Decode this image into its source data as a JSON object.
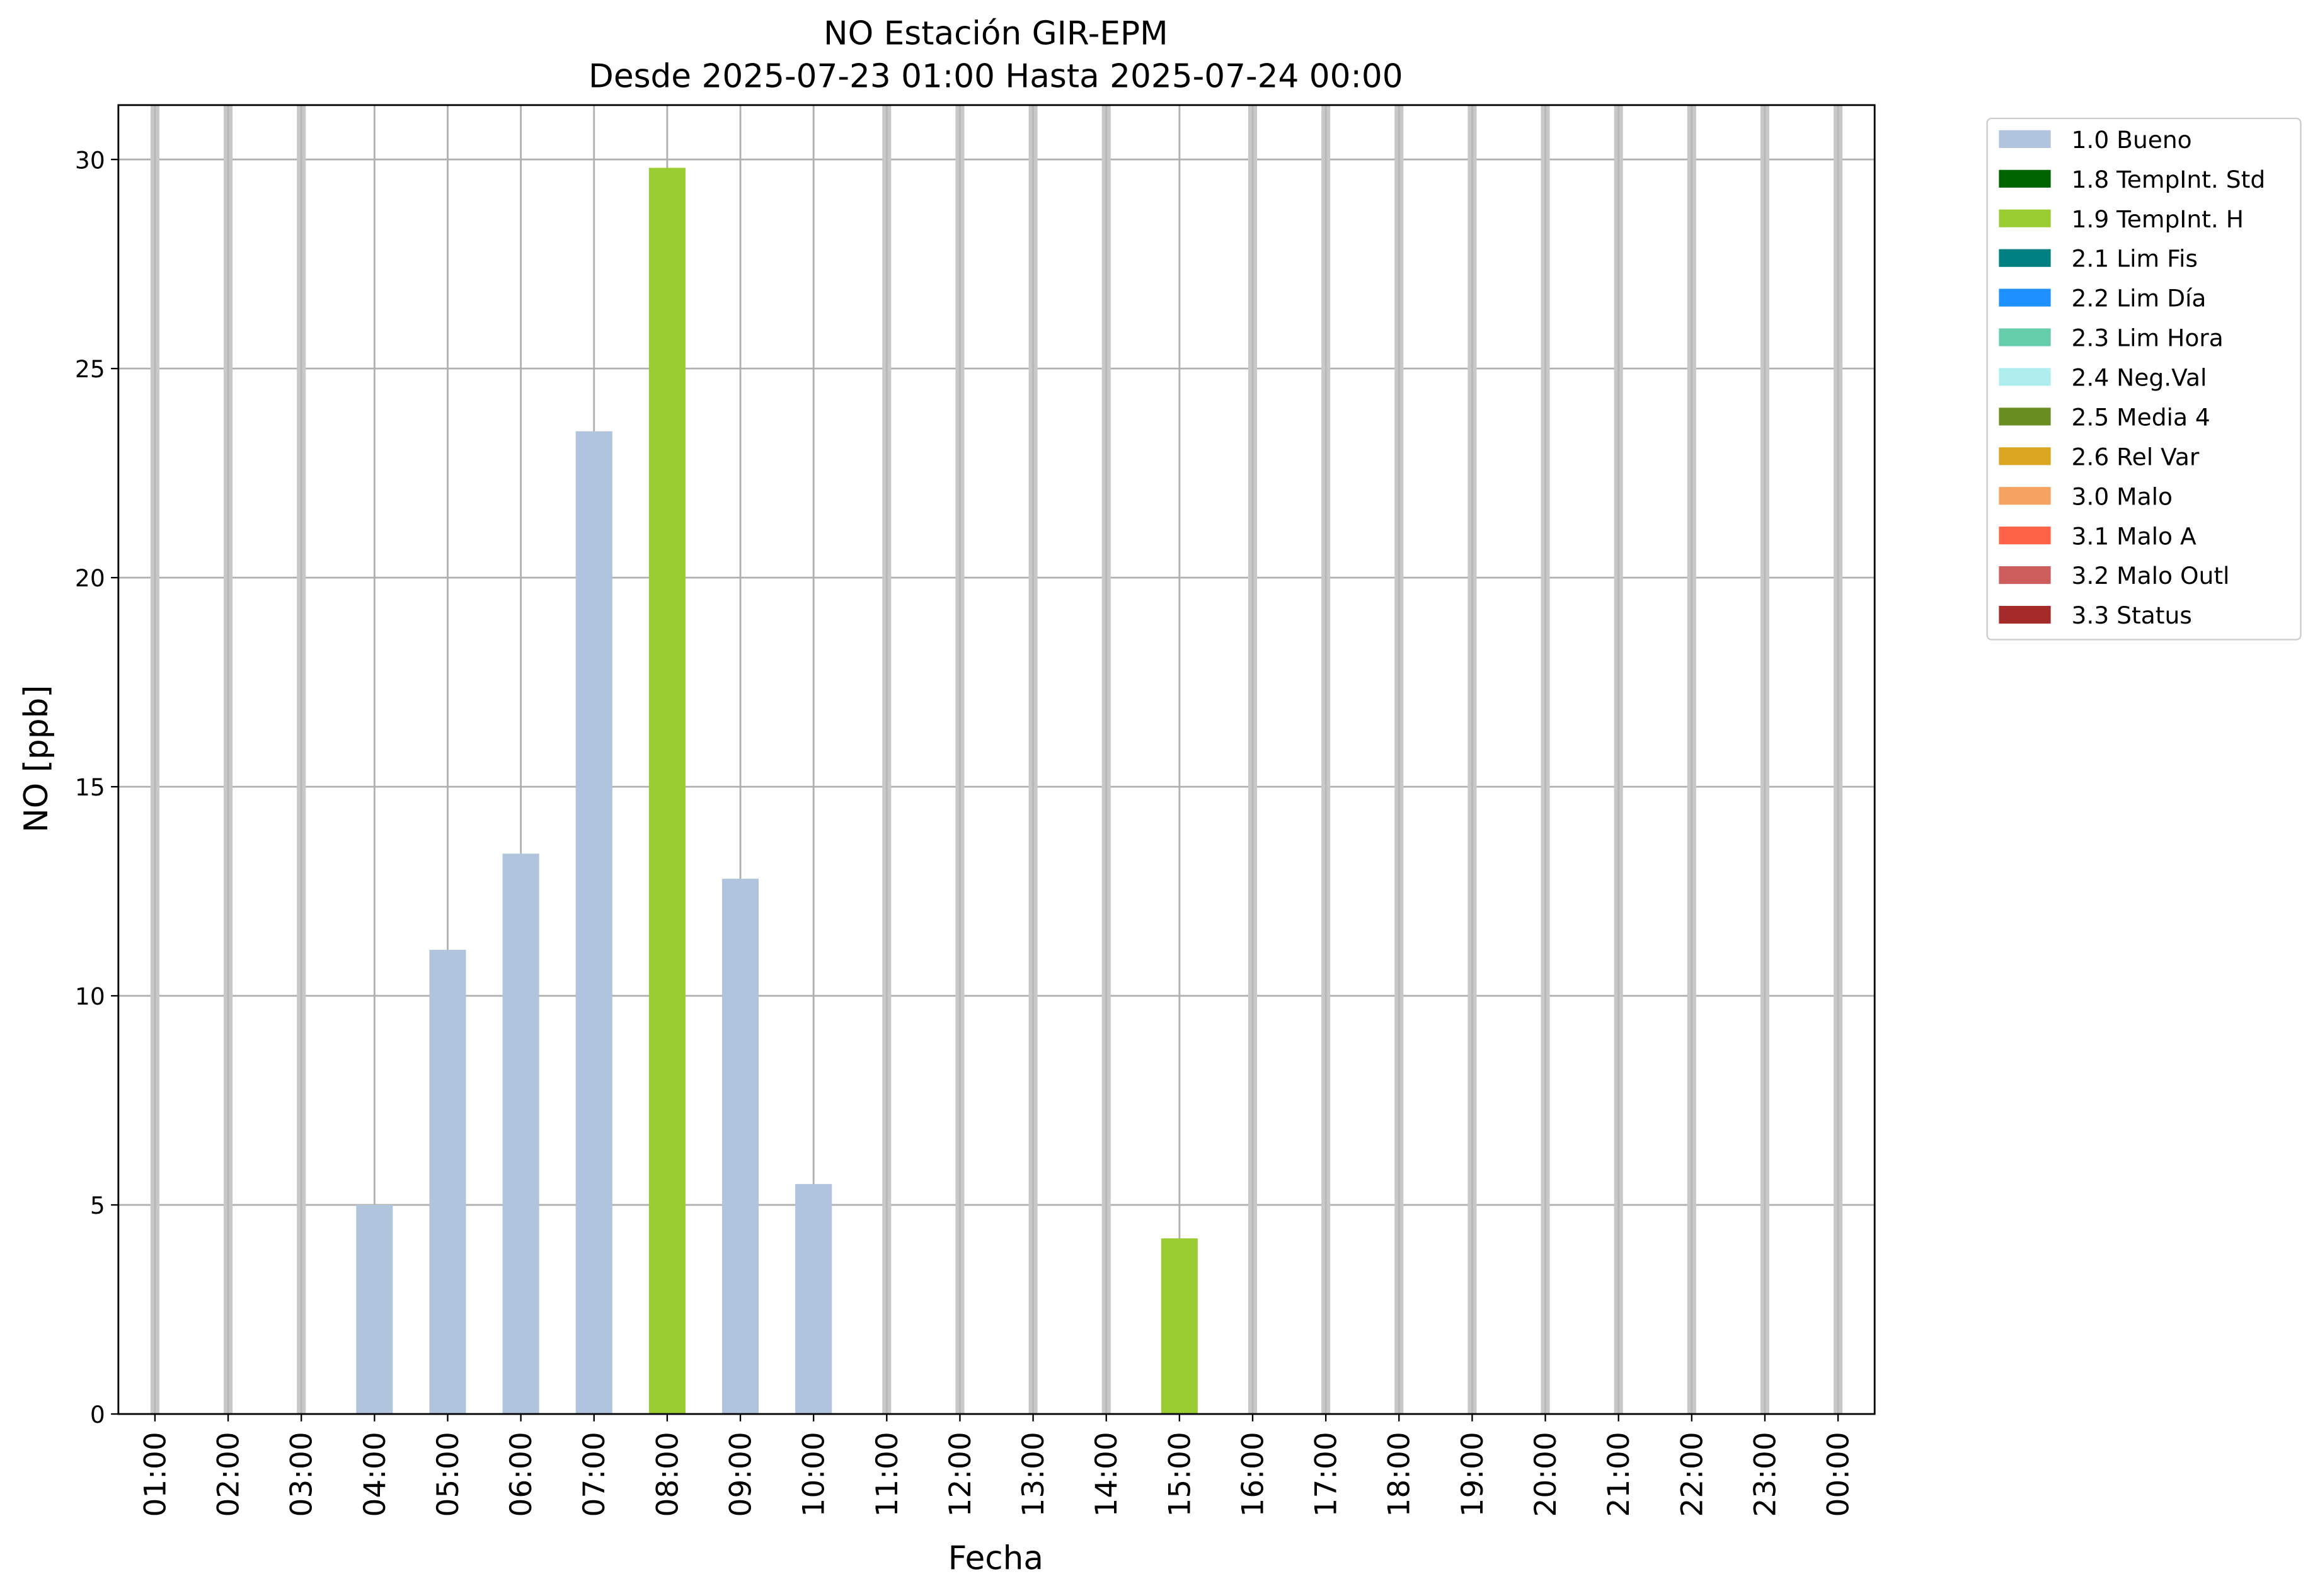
{
  "chart_data": {
    "type": "stacked_bar",
    "title": "NO Estación GIR-EPM",
    "subtitle": "Desde 2025-07-23 01:00 Hasta 2025-07-24 00:00",
    "x_label": "Fecha",
    "y_label": "NO [ppb]",
    "categories": [
      "01:00",
      "02:00",
      "03:00",
      "04:00",
      "05:00",
      "06:00",
      "07:00",
      "08:00",
      "09:00",
      "10:00",
      "11:00",
      "12:00",
      "13:00",
      "14:00",
      "15:00",
      "16:00",
      "17:00",
      "18:00",
      "19:00",
      "20:00",
      "21:00",
      "22:00",
      "23:00",
      "00:00"
    ],
    "series": [
      {
        "name": "1.0 Bueno",
        "color": "#b0c4de",
        "values": [
          null,
          null,
          null,
          5.0,
          11.1,
          13.4,
          23.5,
          null,
          12.8,
          5.5,
          null,
          null,
          null,
          null,
          null,
          null,
          null,
          null,
          null,
          null,
          null,
          null,
          null,
          null
        ]
      },
      {
        "name": "1.8 TempInt. Std",
        "color": "#006400",
        "values": [
          null,
          null,
          null,
          null,
          null,
          null,
          null,
          null,
          null,
          null,
          null,
          null,
          null,
          null,
          null,
          null,
          null,
          null,
          null,
          null,
          null,
          null,
          null,
          null
        ]
      },
      {
        "name": "1.9 TempInt. H",
        "color": "#9acd32",
        "values": [
          null,
          null,
          null,
          null,
          null,
          null,
          null,
          29.8,
          null,
          null,
          null,
          null,
          null,
          null,
          4.2,
          null,
          null,
          null,
          null,
          null,
          null,
          null,
          null,
          null
        ]
      },
      {
        "name": "2.1 Lim Fis",
        "color": "#008080",
        "values": [
          null,
          null,
          null,
          null,
          null,
          null,
          null,
          null,
          null,
          null,
          null,
          null,
          null,
          null,
          null,
          null,
          null,
          null,
          null,
          null,
          null,
          null,
          null,
          null
        ]
      },
      {
        "name": "2.2 Lim Día",
        "color": "#1e90ff",
        "values": [
          null,
          null,
          null,
          null,
          null,
          null,
          null,
          null,
          null,
          null,
          null,
          null,
          null,
          null,
          null,
          null,
          null,
          null,
          null,
          null,
          null,
          null,
          null,
          null
        ]
      },
      {
        "name": "2.3 Lim Hora",
        "color": "#66cdaa",
        "values": [
          null,
          null,
          null,
          null,
          null,
          null,
          null,
          null,
          null,
          null,
          null,
          null,
          null,
          null,
          null,
          null,
          null,
          null,
          null,
          null,
          null,
          null,
          null,
          null
        ]
      },
      {
        "name": "2.4 Neg.Val",
        "color": "#afeeee",
        "values": [
          null,
          null,
          null,
          null,
          null,
          null,
          null,
          null,
          null,
          null,
          null,
          null,
          null,
          null,
          null,
          null,
          null,
          null,
          null,
          null,
          null,
          null,
          null,
          null
        ]
      },
      {
        "name": "2.5 Media 4",
        "color": "#6b8e23",
        "values": [
          null,
          null,
          null,
          null,
          null,
          null,
          null,
          null,
          null,
          null,
          null,
          null,
          null,
          null,
          null,
          null,
          null,
          null,
          null,
          null,
          null,
          null,
          null,
          null
        ]
      },
      {
        "name": "2.6 Rel Var",
        "color": "#daa520",
        "values": [
          null,
          null,
          null,
          null,
          null,
          null,
          null,
          null,
          null,
          null,
          null,
          null,
          null,
          null,
          null,
          null,
          null,
          null,
          null,
          null,
          null,
          null,
          null,
          null
        ]
      },
      {
        "name": "3.0 Malo",
        "color": "#f4a460",
        "values": [
          null,
          null,
          null,
          null,
          null,
          null,
          null,
          null,
          null,
          null,
          null,
          null,
          null,
          null,
          null,
          null,
          null,
          null,
          null,
          null,
          null,
          null,
          null,
          null
        ]
      },
      {
        "name": "3.1 Malo A",
        "color": "#ff6347",
        "values": [
          null,
          null,
          null,
          null,
          null,
          null,
          null,
          null,
          null,
          null,
          null,
          null,
          null,
          null,
          null,
          null,
          null,
          null,
          null,
          null,
          null,
          null,
          null,
          null
        ]
      },
      {
        "name": "3.2 Malo Outl",
        "color": "#cd5c5c",
        "values": [
          null,
          null,
          null,
          null,
          null,
          null,
          null,
          null,
          null,
          null,
          null,
          null,
          null,
          null,
          null,
          null,
          null,
          null,
          null,
          null,
          null,
          null,
          null,
          null
        ]
      },
      {
        "name": "3.3 Status",
        "color": "#a52a2a",
        "values": [
          null,
          null,
          null,
          null,
          null,
          null,
          null,
          null,
          null,
          null,
          null,
          null,
          null,
          null,
          null,
          null,
          null,
          null,
          null,
          null,
          null,
          null,
          null,
          null
        ]
      }
    ],
    "ylim": [
      0,
      31.3
    ],
    "yticks": [
      0,
      5,
      10,
      15,
      20,
      25,
      30
    ],
    "grid": true,
    "legend": "outside-upper-right"
  }
}
